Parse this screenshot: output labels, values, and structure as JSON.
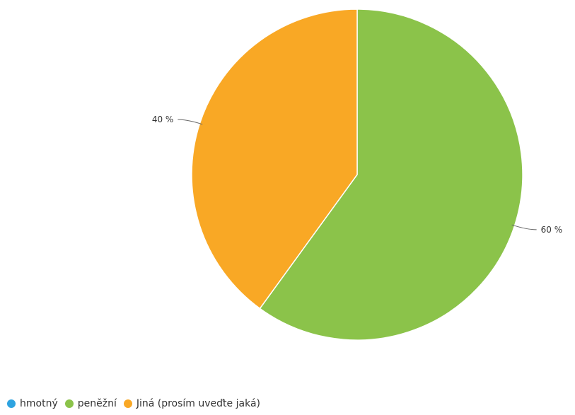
{
  "chart_data": {
    "type": "pie",
    "title": "",
    "categories": [
      "hmotný",
      "peněžní",
      "Jiná (prosím uveďte jaká)"
    ],
    "values": [
      0,
      60,
      40
    ],
    "data_labels": [
      "",
      "60 %",
      "40 %"
    ],
    "colors": [
      "#2ea3e0",
      "#8bc34a",
      "#f9a825"
    ],
    "legend": "bottom-left",
    "start_angle_deg": 0,
    "direction": "clockwise"
  }
}
